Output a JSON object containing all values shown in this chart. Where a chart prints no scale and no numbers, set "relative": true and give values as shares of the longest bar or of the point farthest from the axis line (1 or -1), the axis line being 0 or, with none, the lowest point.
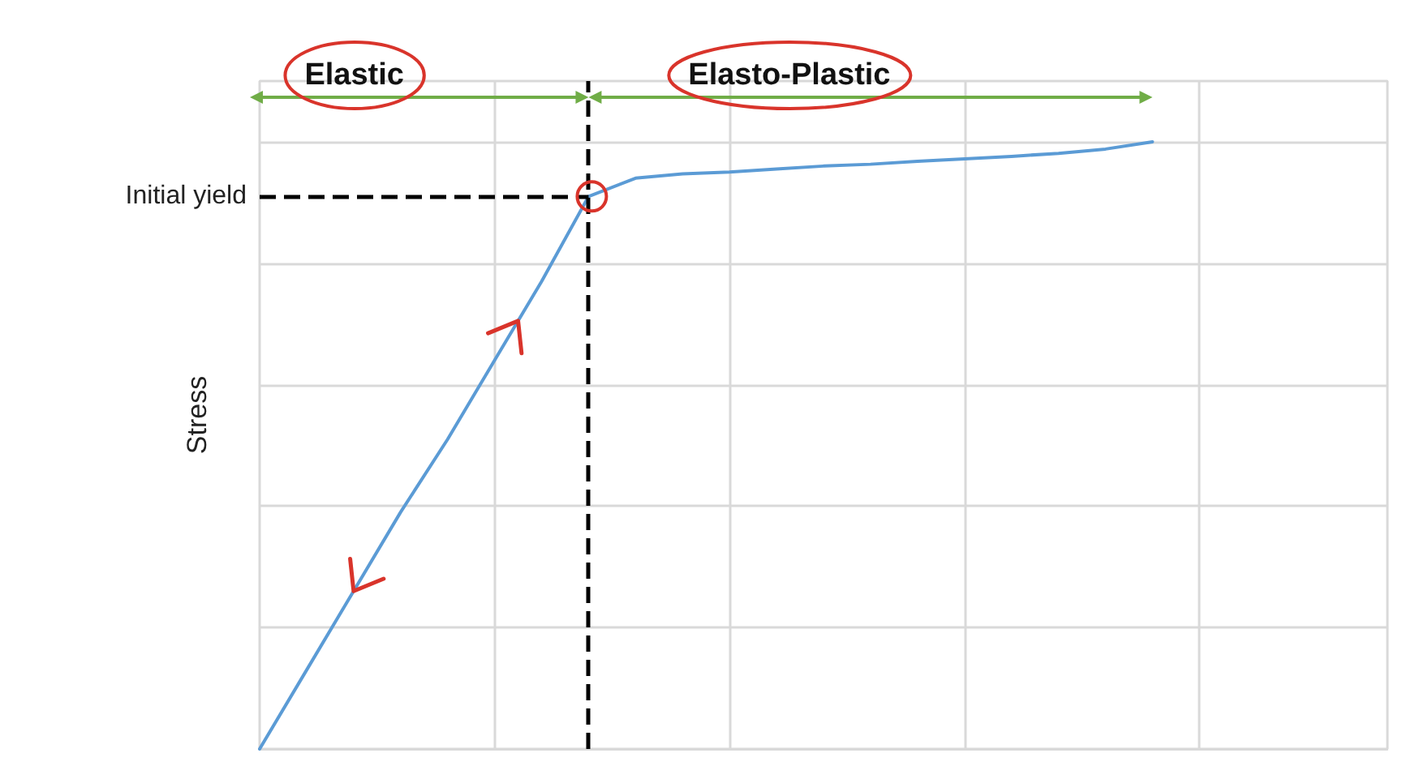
{
  "chart_data": {
    "type": "line",
    "relative": true,
    "ylabel": "Stress",
    "categories": [
      null,
      null,
      null,
      null,
      null,
      null,
      null,
      null,
      null,
      null,
      null,
      null,
      null,
      null,
      null,
      null,
      null,
      null,
      null,
      null,
      null,
      null,
      null,
      null,
      null
    ],
    "series": [
      {
        "color": "#5b9bd5",
        "values": [
          0,
          0.13,
          0.26,
          0.39,
          0.51,
          0.64,
          0.77,
          0.91,
          0.94,
          0.947,
          0.95,
          0.955,
          0.96,
          0.963,
          0.968,
          0.972,
          0.976,
          0.981,
          0.988,
          1,
          null,
          null,
          null,
          null,
          null
        ]
      }
    ],
    "ref_lines": [
      {
        "axis": "y",
        "value": 0.91,
        "label": "Initial yield",
        "color": "#000000",
        "line_style": "dashed"
      }
    ],
    "annotations": [
      "Elastic",
      "Elasto-Plastic"
    ],
    "grid": true,
    "marker": "none",
    "line_style": "solid"
  }
}
